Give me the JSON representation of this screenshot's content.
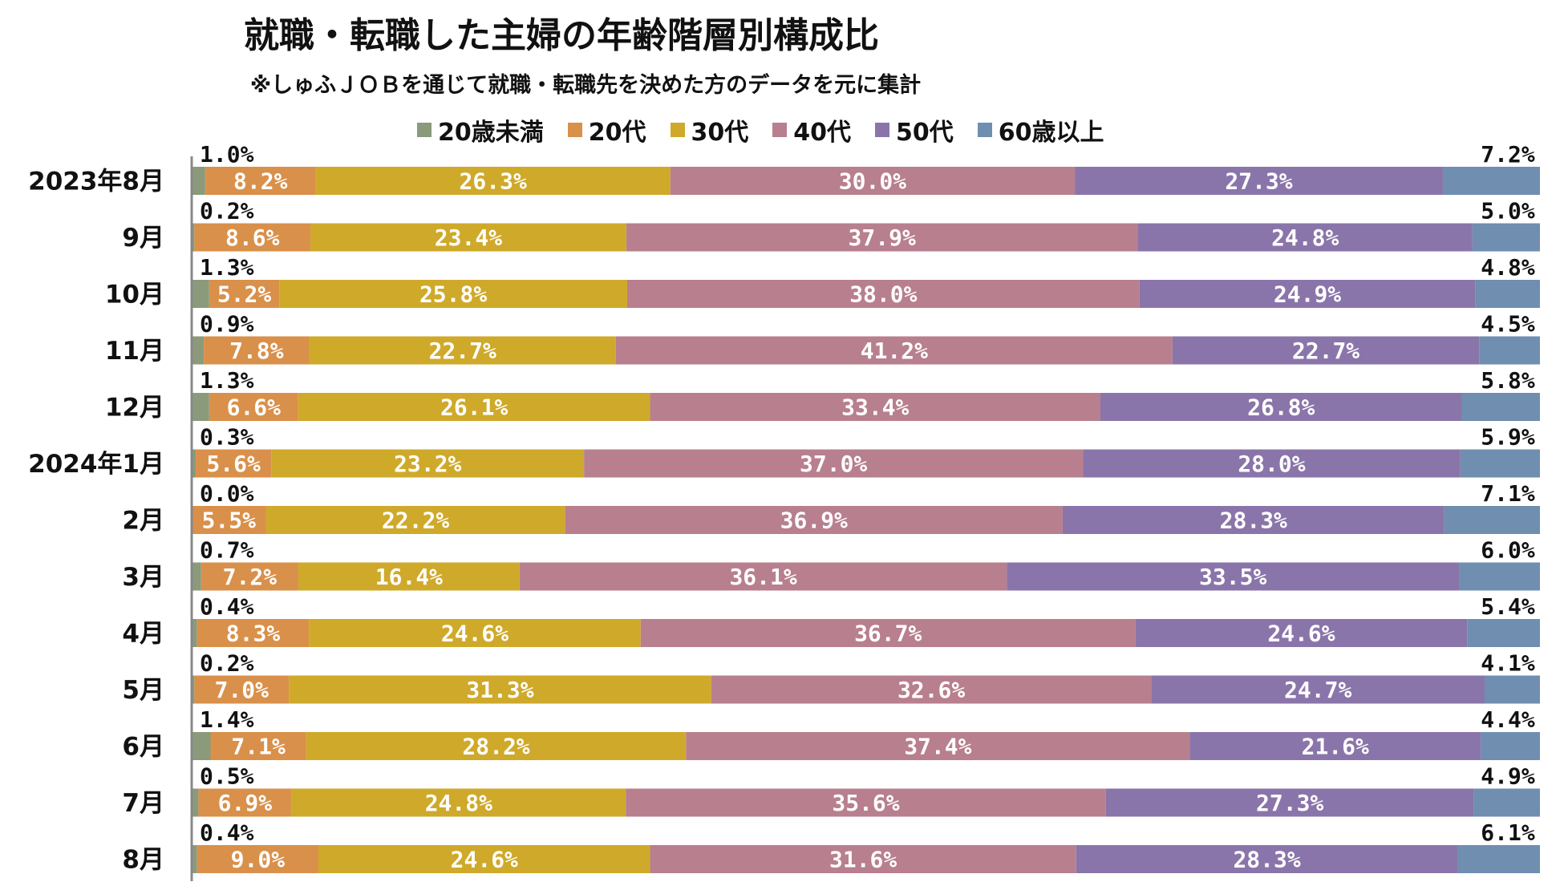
{
  "chart_data": {
    "type": "bar",
    "orientation": "horizontal",
    "stacked": "percent",
    "title": "就職・転職した主婦の年齢階層別構成比",
    "subtitle": "※しゅふＪＯＢを通じて就職・転職先を決めた方のデータを元に集計",
    "legend_position": "top",
    "grid": false,
    "xlim": [
      0,
      100
    ],
    "categories": [
      "2023年8月",
      "9月",
      "10月",
      "11月",
      "12月",
      "2024年1月",
      "2月",
      "3月",
      "4月",
      "5月",
      "6月",
      "7月",
      "8月"
    ],
    "series": [
      {
        "name": "20歳未満",
        "color": "#8a9a7a",
        "values": [
          1.0,
          0.2,
          1.3,
          0.9,
          1.3,
          0.3,
          0.0,
          0.7,
          0.4,
          0.2,
          1.4,
          0.5,
          0.4
        ]
      },
      {
        "name": "20代",
        "color": "#d9904a",
        "values": [
          8.2,
          8.6,
          5.2,
          7.8,
          6.6,
          5.6,
          5.5,
          7.2,
          8.3,
          7.0,
          7.1,
          6.9,
          9.0
        ]
      },
      {
        "name": "30代",
        "color": "#cfa92a",
        "values": [
          26.3,
          23.4,
          25.8,
          22.7,
          26.1,
          23.2,
          22.2,
          16.4,
          24.6,
          31.3,
          28.2,
          24.8,
          24.6
        ]
      },
      {
        "name": "40代",
        "color": "#b87f8e",
        "values": [
          30.0,
          37.9,
          38.0,
          41.2,
          33.4,
          37.0,
          36.9,
          36.1,
          36.7,
          32.6,
          37.4,
          35.6,
          31.6
        ]
      },
      {
        "name": "50代",
        "color": "#8a75aa",
        "values": [
          27.3,
          24.8,
          24.9,
          22.7,
          26.8,
          28.0,
          28.3,
          33.5,
          24.6,
          24.7,
          21.6,
          27.3,
          28.3
        ]
      },
      {
        "name": "60歳以上",
        "color": "#6f8eb0",
        "values": [
          7.2,
          5.0,
          4.8,
          4.5,
          5.8,
          5.9,
          7.1,
          6.0,
          5.4,
          4.1,
          4.4,
          4.9,
          6.1
        ]
      }
    ],
    "labels": {
      "s0": [
        "1.0%",
        "0.2%",
        "1.3%",
        "0.9%",
        "1.3%",
        "0.3%",
        "0.0%",
        "0.7%",
        "0.4%",
        "0.2%",
        "1.4%",
        "0.5%",
        "0.4%"
      ],
      "s1": [
        "8.2%",
        "8.6%",
        "5.2%",
        "7.8%",
        "6.6%",
        "5.6%",
        "5.5%",
        "7.2%",
        "8.3%",
        "7.0%",
        "7.1%",
        "6.9%",
        "9.0%"
      ],
      "s2": [
        "26.3%",
        "23.4%",
        "25.8%",
        "22.7%",
        "26.1%",
        "23.2%",
        "22.2%",
        "16.4%",
        "24.6%",
        "31.3%",
        "28.2%",
        "24.8%",
        "24.6%"
      ],
      "s3": [
        "30.0%",
        "37.9%",
        "38.0%",
        "41.2%",
        "33.4%",
        "37.0%",
        "36.9%",
        "36.1%",
        "36.7%",
        "32.6%",
        "37.4%",
        "35.6%",
        "31.6%"
      ],
      "s4": [
        "27.3%",
        "24.8%",
        "24.9%",
        "22.7%",
        "26.8%",
        "28.0%",
        "28.3%",
        "33.5%",
        "24.6%",
        "24.7%",
        "21.6%",
        "27.3%",
        "28.3%"
      ],
      "s5": [
        "7.2%",
        "5.0%",
        "4.8%",
        "4.5%",
        "5.8%",
        "5.9%",
        "7.1%",
        "6.0%",
        "5.4%",
        "4.1%",
        "4.4%",
        "4.9%",
        "6.1%"
      ]
    }
  }
}
